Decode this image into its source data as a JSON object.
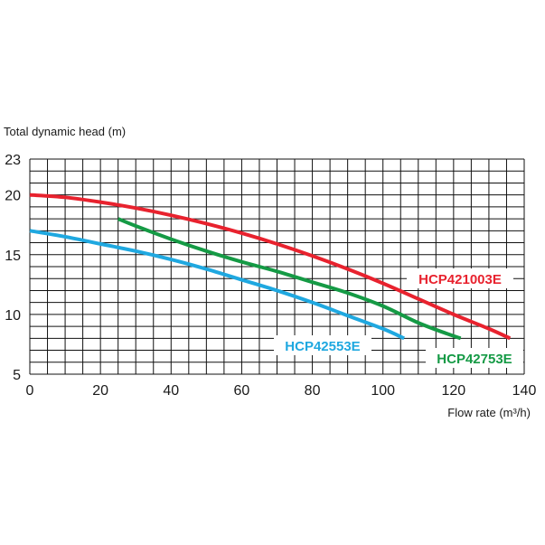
{
  "chart_data": {
    "type": "line",
    "ylabel": "Total dynamic head (m)",
    "xlabel": "Flow rate (m³/h)",
    "xlim": [
      0,
      140
    ],
    "ylim": [
      5,
      23
    ],
    "x_ticks": [
      "0",
      "20",
      "40",
      "60",
      "80",
      "100",
      "120",
      "140"
    ],
    "y_ticks": [
      "5",
      "10",
      "15",
      "20",
      "23"
    ],
    "x_tick_values": [
      0,
      20,
      40,
      60,
      80,
      100,
      120,
      140
    ],
    "y_tick_values": [
      5,
      10,
      15,
      20,
      23
    ],
    "x_grid_step": 5,
    "y_grid_step": 1,
    "grid": true,
    "series": [
      {
        "name": "HCP421003E",
        "color": "#e8222e",
        "x": [
          0,
          10,
          20,
          30,
          40,
          50,
          60,
          70,
          80,
          90,
          100,
          110,
          120,
          130,
          136
        ],
        "y": [
          20.0,
          19.8,
          19.4,
          18.9,
          18.3,
          17.6,
          16.8,
          15.9,
          14.9,
          13.8,
          12.6,
          11.3,
          10.0,
          8.8,
          8.0
        ]
      },
      {
        "name": "HCP42753E",
        "color": "#159a45",
        "x": [
          25,
          30,
          40,
          50,
          60,
          70,
          80,
          90,
          100,
          110,
          118,
          122
        ],
        "y": [
          18.0,
          17.4,
          16.3,
          15.3,
          14.4,
          13.6,
          12.7,
          11.8,
          10.7,
          9.3,
          8.4,
          8.0
        ]
      },
      {
        "name": "HCP42553E",
        "color": "#1fa8e0",
        "x": [
          0,
          10,
          20,
          30,
          40,
          50,
          60,
          70,
          80,
          90,
          100,
          106
        ],
        "y": [
          17.0,
          16.5,
          15.9,
          15.3,
          14.6,
          13.8,
          12.9,
          12.0,
          11.0,
          9.9,
          8.8,
          8.0
        ]
      }
    ]
  }
}
